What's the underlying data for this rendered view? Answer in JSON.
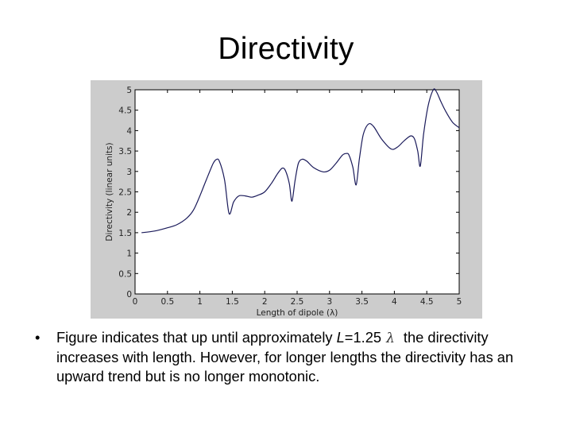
{
  "slide": {
    "title": "Directivity",
    "bullet": {
      "marker": "•",
      "text_before": "Figure indicates that up until approximately ",
      "var": "L",
      "equals_value": "=1.25",
      "lambda_symbol": "λ",
      "text_after": " the directivity increases with length. However, for longer lengths the directivity has an upward trend but is no longer monotonic."
    }
  },
  "colors": {
    "panel_bg": "#cccccc",
    "plot_bg": "#ffffff",
    "line": "#1a1a5a",
    "axis": "#000000"
  },
  "chart_data": {
    "type": "line",
    "title": "",
    "xlabel": "Length of dipole (λ)",
    "ylabel": "Directivity (linear units)",
    "xlim": [
      0,
      5
    ],
    "ylim": [
      0,
      5
    ],
    "xticks": [
      "0",
      "0.5",
      "1",
      "1.5",
      "2",
      "2.5",
      "3",
      "3.5",
      "4",
      "4.5",
      "5"
    ],
    "yticks": [
      "0",
      "0.5",
      "1",
      "1.5",
      "2",
      "2.5",
      "3",
      "3.5",
      "4",
      "4.5",
      "5"
    ],
    "grid": false,
    "legend": null,
    "series": [
      {
        "name": "Directivity",
        "x": [
          0.1,
          0.3,
          0.5,
          0.65,
          0.8,
          0.9,
          1.0,
          1.1,
          1.2,
          1.25,
          1.3,
          1.38,
          1.45,
          1.52,
          1.6,
          1.7,
          1.8,
          1.9,
          2.0,
          2.1,
          2.2,
          2.27,
          2.32,
          2.38,
          2.42,
          2.47,
          2.52,
          2.58,
          2.65,
          2.75,
          2.9,
          3.0,
          3.1,
          3.2,
          3.26,
          3.3,
          3.36,
          3.41,
          3.46,
          3.52,
          3.6,
          3.68,
          3.8,
          3.95,
          4.05,
          4.15,
          4.25,
          4.31,
          4.36,
          4.4,
          4.45,
          4.52,
          4.6,
          4.65,
          4.72,
          4.8,
          4.9,
          5.0
        ],
        "values": [
          1.5,
          1.54,
          1.62,
          1.7,
          1.86,
          2.05,
          2.4,
          2.8,
          3.18,
          3.29,
          3.25,
          2.8,
          1.97,
          2.25,
          2.4,
          2.4,
          2.37,
          2.42,
          2.5,
          2.7,
          2.95,
          3.08,
          3.02,
          2.7,
          2.27,
          2.8,
          3.2,
          3.3,
          3.25,
          3.1,
          2.99,
          3.03,
          3.2,
          3.4,
          3.44,
          3.4,
          3.1,
          2.67,
          3.3,
          3.9,
          4.16,
          4.1,
          3.8,
          3.55,
          3.6,
          3.75,
          3.87,
          3.8,
          3.5,
          3.13,
          3.9,
          4.6,
          5.0,
          4.95,
          4.7,
          4.45,
          4.2,
          4.07
        ]
      }
    ]
  }
}
